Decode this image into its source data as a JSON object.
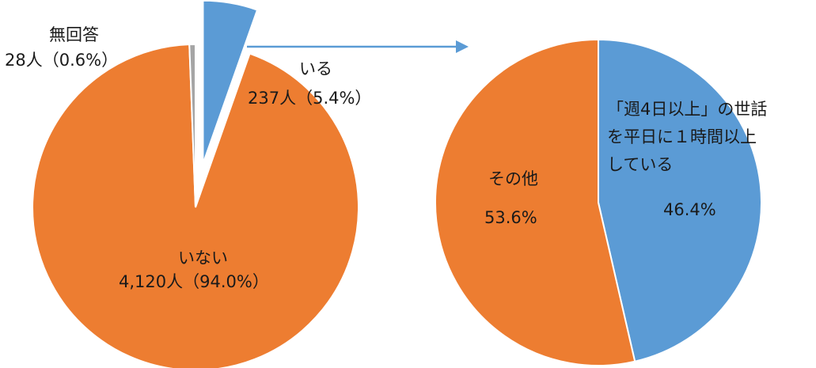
{
  "chart_data": [
    {
      "type": "pie",
      "slices": [
        {
          "name": "いる",
          "value": 237,
          "percent": 5.4,
          "color": "#5b9bd5",
          "exploded": true
        },
        {
          "name": "いない",
          "value": 4120,
          "percent": 94.0,
          "color": "#ed7d31"
        },
        {
          "name": "無回答",
          "value": 28,
          "percent": 0.6,
          "color": "#a5a5a5"
        }
      ],
      "labels": {
        "iru_name": "いる",
        "iru_value": "237人（5.4%）",
        "inai_name": "いない",
        "inai_value": "4,120人（94.0%）",
        "mukaitou_name": "無回答",
        "mukaitou_value": "28人（0.6%）"
      }
    },
    {
      "type": "pie",
      "slices": [
        {
          "name": "「週4日以上」の世話を平日に１時間以上している",
          "percent": 46.4,
          "color": "#5b9bd5"
        },
        {
          "name": "その他",
          "percent": 53.6,
          "color": "#ed7d31"
        }
      ],
      "labels": {
        "blue_line1": "「週4日以上」の世話",
        "blue_line2": "を平日に１時間以上",
        "blue_line3": "している",
        "blue_value": "46.4%",
        "orange_name": "その他",
        "orange_value": "53.6%"
      }
    }
  ],
  "colors": {
    "blue": "#5b9bd5",
    "orange": "#ed7d31",
    "gray": "#a5a5a5",
    "arrow": "#5b9bd5"
  }
}
